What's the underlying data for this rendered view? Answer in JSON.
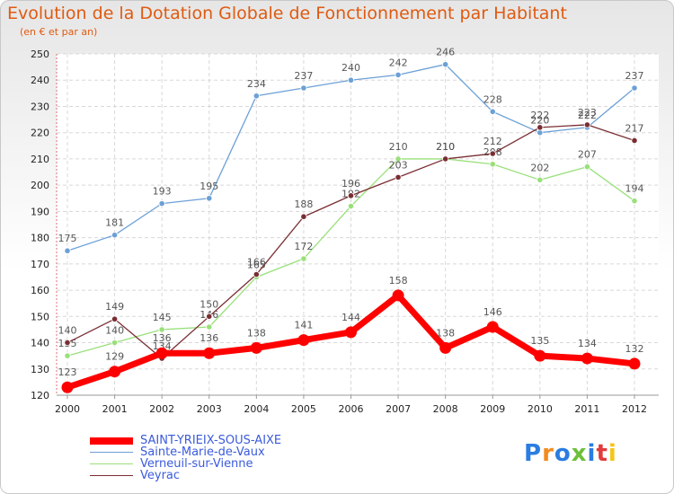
{
  "title": "Evolution de la Dotation Globale de Fonctionnement par Habitant",
  "subtitle": "(en € et par an)",
  "logo": "Proxiti",
  "chart_data": {
    "type": "line",
    "title": "Evolution de la Dotation Globale de Fonctionnement par Habitant",
    "subtitle": "(en € et par an)",
    "categories": [
      "2000",
      "2001",
      "2002",
      "2003",
      "2004",
      "2005",
      "2006",
      "2007",
      "2008",
      "2009",
      "2010",
      "2011",
      "2012"
    ],
    "ylim": [
      120,
      250
    ],
    "yticks": [
      120,
      130,
      140,
      150,
      160,
      170,
      180,
      190,
      200,
      210,
      220,
      230,
      240,
      250
    ],
    "grid": true,
    "legend_position": "bottom-left",
    "series": [
      {
        "name": "SAINT-YRIEIX-SOUS-AIXE",
        "color": "#ff0000",
        "values": [
          123,
          129,
          136,
          136,
          138,
          141,
          144,
          158,
          138,
          146,
          135,
          134,
          132
        ]
      },
      {
        "name": "Sainte-Marie-de-Vaux",
        "color": "#6ca0d6",
        "values": [
          175,
          181,
          193,
          195,
          234,
          237,
          240,
          242,
          246,
          228,
          220,
          222,
          237
        ]
      },
      {
        "name": "Verneuil-sur-Vienne",
        "color": "#99e07a",
        "values": [
          135,
          140,
          145,
          146,
          165,
          172,
          192,
          210,
          210,
          208,
          202,
          207,
          194
        ]
      },
      {
        "name": "Veyrac",
        "color": "#7a2e32",
        "values": [
          140,
          149,
          134,
          150,
          166,
          188,
          196,
          203,
          210,
          212,
          222,
          223,
          217
        ]
      }
    ]
  }
}
